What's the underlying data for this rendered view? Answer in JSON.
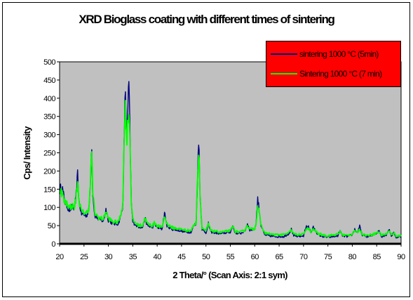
{
  "chart_data": {
    "type": "line",
    "title": "XRD Bioglass coating with different times of sintering",
    "xlabel": "2 Theta/° (Scan Axis: 2:1 sym)",
    "ylabel": "Cps/ Intensity",
    "xlim": [
      20,
      90
    ],
    "ylim": [
      0,
      500
    ],
    "x_ticks": [
      20,
      25,
      30,
      35,
      40,
      45,
      50,
      55,
      60,
      65,
      70,
      75,
      80,
      85,
      90
    ],
    "y_ticks": [
      0,
      50,
      100,
      150,
      200,
      250,
      300,
      350,
      400,
      450,
      500
    ],
    "grid": false,
    "plot_background": "#c0c0c0",
    "legend_position": "top-right",
    "legend_background": "#ff0000",
    "series": [
      {
        "name": "sintering 1000 °C (5min)",
        "color": "#000080",
        "points": [
          [
            20,
            148
          ],
          [
            20.5,
            158
          ],
          [
            21,
            118
          ],
          [
            21.5,
            105
          ],
          [
            22,
            92
          ],
          [
            22.5,
            100
          ],
          [
            23,
            98
          ],
          [
            23.3,
            120
          ],
          [
            23.7,
            190
          ],
          [
            24,
            115
          ],
          [
            24.5,
            82
          ],
          [
            25,
            80
          ],
          [
            25.5,
            78
          ],
          [
            26,
            92
          ],
          [
            26.3,
            160
          ],
          [
            26.55,
            285
          ],
          [
            26.8,
            140
          ],
          [
            27.2,
            78
          ],
          [
            28,
            68
          ],
          [
            29,
            62
          ],
          [
            29.5,
            95
          ],
          [
            30,
            65
          ],
          [
            31,
            55
          ],
          [
            32,
            55
          ],
          [
            32.5,
            75
          ],
          [
            33,
            110
          ],
          [
            33.3,
            330
          ],
          [
            33.5,
            420
          ],
          [
            33.8,
            300
          ],
          [
            34,
            350
          ],
          [
            34.15,
            468
          ],
          [
            34.4,
            310
          ],
          [
            34.7,
            110
          ],
          [
            35,
            60
          ],
          [
            36,
            48
          ],
          [
            37,
            45
          ],
          [
            37.5,
            70
          ],
          [
            38,
            50
          ],
          [
            39,
            45
          ],
          [
            39.5,
            55
          ],
          [
            40,
            45
          ],
          [
            41,
            40
          ],
          [
            41.5,
            85
          ],
          [
            42,
            50
          ],
          [
            43,
            40
          ],
          [
            44,
            38
          ],
          [
            45,
            35
          ],
          [
            46,
            32
          ],
          [
            47,
            32
          ],
          [
            47.5,
            50
          ],
          [
            48,
            55
          ],
          [
            48.3,
            200
          ],
          [
            48.55,
            288
          ],
          [
            48.8,
            130
          ],
          [
            49.2,
            40
          ],
          [
            50,
            30
          ],
          [
            50.5,
            55
          ],
          [
            51,
            32
          ],
          [
            52,
            30
          ],
          [
            53,
            28
          ],
          [
            54,
            30
          ],
          [
            55,
            32
          ],
          [
            55.5,
            48
          ],
          [
            56,
            30
          ],
          [
            57,
            28
          ],
          [
            58,
            35
          ],
          [
            58.5,
            55
          ],
          [
            59,
            38
          ],
          [
            60,
            40
          ],
          [
            60.3,
            60
          ],
          [
            60.6,
            125
          ],
          [
            60.9,
            95
          ],
          [
            61.3,
            50
          ],
          [
            62,
            25
          ],
          [
            63,
            22
          ],
          [
            64,
            20
          ],
          [
            65,
            20
          ],
          [
            66,
            20
          ],
          [
            67,
            28
          ],
          [
            67.5,
            40
          ],
          [
            68,
            22
          ],
          [
            69,
            20
          ],
          [
            70,
            22
          ],
          [
            70.5,
            45
          ],
          [
            71,
            50
          ],
          [
            71.5,
            30
          ],
          [
            72,
            45
          ],
          [
            72.5,
            35
          ],
          [
            73,
            25
          ],
          [
            74,
            20
          ],
          [
            75,
            18
          ],
          [
            76,
            20
          ],
          [
            77,
            22
          ],
          [
            77.5,
            35
          ],
          [
            78,
            22
          ],
          [
            79,
            20
          ],
          [
            80,
            25
          ],
          [
            80.5,
            40
          ],
          [
            81,
            30
          ],
          [
            81.5,
            48
          ],
          [
            82,
            25
          ],
          [
            83,
            20
          ],
          [
            84,
            22
          ],
          [
            85,
            30
          ],
          [
            85.5,
            35
          ],
          [
            86,
            20
          ],
          [
            87,
            25
          ],
          [
            87.5,
            40
          ],
          [
            88,
            22
          ],
          [
            88.5,
            30
          ],
          [
            89,
            18
          ],
          [
            90,
            20
          ]
        ]
      },
      {
        "name": "Sintering 1000 °C (7 min)",
        "color": "#00ff00",
        "points": [
          [
            20,
            150
          ],
          [
            20.5,
            140
          ],
          [
            21,
            115
          ],
          [
            21.5,
            112
          ],
          [
            22,
            100
          ],
          [
            22.5,
            105
          ],
          [
            23,
            100
          ],
          [
            23.3,
            120
          ],
          [
            23.7,
            168
          ],
          [
            24,
            118
          ],
          [
            24.5,
            88
          ],
          [
            25,
            86
          ],
          [
            25.5,
            84
          ],
          [
            26,
            98
          ],
          [
            26.3,
            160
          ],
          [
            26.55,
            262
          ],
          [
            26.8,
            145
          ],
          [
            27.2,
            84
          ],
          [
            28,
            72
          ],
          [
            29,
            68
          ],
          [
            29.5,
            90
          ],
          [
            30,
            70
          ],
          [
            31,
            60
          ],
          [
            32,
            60
          ],
          [
            32.5,
            78
          ],
          [
            33,
            115
          ],
          [
            33.3,
            330
          ],
          [
            33.5,
            370
          ],
          [
            33.8,
            290
          ],
          [
            34,
            345
          ],
          [
            34.15,
            370
          ],
          [
            34.4,
            300
          ],
          [
            34.7,
            115
          ],
          [
            35,
            65
          ],
          [
            36,
            52
          ],
          [
            37,
            50
          ],
          [
            37.5,
            72
          ],
          [
            38,
            55
          ],
          [
            39,
            50
          ],
          [
            39.5,
            58
          ],
          [
            40,
            50
          ],
          [
            41,
            45
          ],
          [
            41.5,
            75
          ],
          [
            42,
            55
          ],
          [
            43,
            45
          ],
          [
            44,
            42
          ],
          [
            45,
            40
          ],
          [
            46,
            37
          ],
          [
            47,
            37
          ],
          [
            47.5,
            52
          ],
          [
            48,
            58
          ],
          [
            48.3,
            200
          ],
          [
            48.55,
            265
          ],
          [
            48.8,
            125
          ],
          [
            49.2,
            45
          ],
          [
            50,
            35
          ],
          [
            50.5,
            55
          ],
          [
            51,
            36
          ],
          [
            52,
            34
          ],
          [
            53,
            32
          ],
          [
            54,
            34
          ],
          [
            55,
            36
          ],
          [
            55.5,
            48
          ],
          [
            56,
            34
          ],
          [
            57,
            32
          ],
          [
            58,
            38
          ],
          [
            58.5,
            52
          ],
          [
            59,
            40
          ],
          [
            60,
            42
          ],
          [
            60.3,
            60
          ],
          [
            60.6,
            105
          ],
          [
            60.9,
            85
          ],
          [
            61.3,
            52
          ],
          [
            62,
            30
          ],
          [
            63,
            27
          ],
          [
            64,
            25
          ],
          [
            65,
            25
          ],
          [
            66,
            25
          ],
          [
            67,
            30
          ],
          [
            67.5,
            38
          ],
          [
            68,
            27
          ],
          [
            69,
            25
          ],
          [
            70,
            26
          ],
          [
            70.5,
            40
          ],
          [
            71,
            42
          ],
          [
            71.5,
            32
          ],
          [
            72,
            40
          ],
          [
            72.5,
            35
          ],
          [
            73,
            28
          ],
          [
            74,
            24
          ],
          [
            75,
            22
          ],
          [
            76,
            24
          ],
          [
            77,
            26
          ],
          [
            77.5,
            33
          ],
          [
            78,
            25
          ],
          [
            79,
            23
          ],
          [
            80,
            27
          ],
          [
            80.5,
            36
          ],
          [
            81,
            30
          ],
          [
            81.5,
            40
          ],
          [
            82,
            27
          ],
          [
            83,
            23
          ],
          [
            84,
            25
          ],
          [
            85,
            30
          ],
          [
            85.5,
            33
          ],
          [
            86,
            24
          ],
          [
            87,
            27
          ],
          [
            87.5,
            35
          ],
          [
            88,
            25
          ],
          [
            88.5,
            30
          ],
          [
            89,
            22
          ],
          [
            90,
            22
          ]
        ]
      }
    ]
  }
}
